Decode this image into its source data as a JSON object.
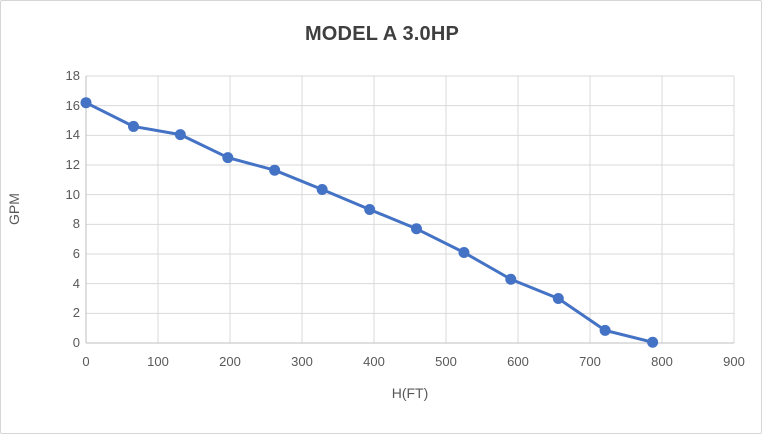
{
  "chart_data": {
    "type": "line",
    "title": "MODEL A 3.0HP",
    "xlabel": "H(FT)",
    "ylabel": "GPM",
    "x": [
      0,
      66,
      131,
      197,
      262,
      328,
      394,
      459,
      525,
      590,
      656,
      721,
      787
    ],
    "y": [
      16.2,
      14.6,
      14.05,
      12.5,
      11.65,
      10.35,
      9.0,
      7.7,
      6.1,
      4.3,
      3.0,
      0.85,
      0.05
    ],
    "xlim": [
      0,
      900
    ],
    "xtick_step": 100,
    "ylim": [
      0,
      18
    ],
    "ytick_step": 2,
    "grid": true,
    "legend": false,
    "marker": "circle",
    "colors": {
      "line": "#4472c4",
      "marker": "#4472c4",
      "gridline": "#d9d9d9",
      "axis_line": "#bfbfbf",
      "tick_label": "#595959",
      "axis_title": "#595959",
      "title": "#3f3f3f"
    }
  }
}
